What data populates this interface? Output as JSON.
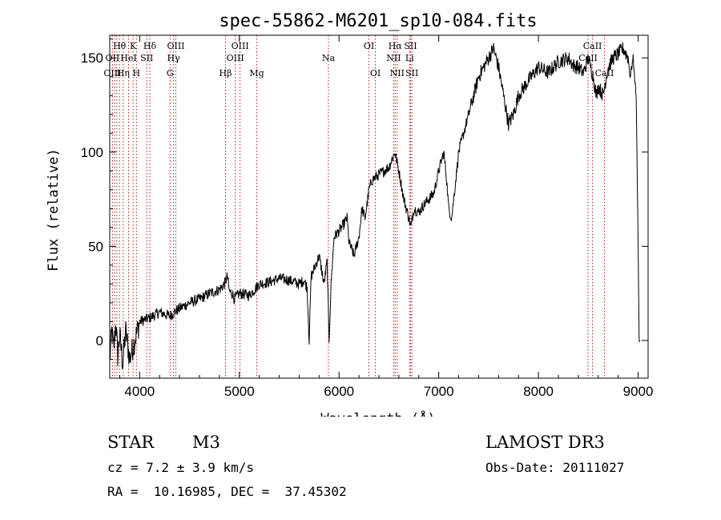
{
  "chart_data": {
    "type": "line",
    "title": "spec-55862-M6201_sp10-084.fits",
    "xlabel": "Wavelength (Å)",
    "ylabel": "Flux (relative)",
    "xlim": [
      3700,
      9100
    ],
    "ylim": [
      -20,
      162
    ],
    "xticks": [
      4000,
      5000,
      6000,
      7000,
      8000,
      9000
    ],
    "yticks": [
      0,
      50,
      100,
      150
    ],
    "spectrum_anchors": {
      "x": [
        3700,
        3720,
        3740,
        3760,
        3780,
        3800,
        3830,
        3860,
        3900,
        3950,
        4000,
        4100,
        4200,
        4300,
        4400,
        4500,
        4600,
        4700,
        4800,
        4850,
        4880,
        4900,
        4930,
        4950,
        5000,
        5100,
        5200,
        5300,
        5400,
        5500,
        5600,
        5650,
        5680,
        5700,
        5720,
        5750,
        5800,
        5850,
        5880,
        5900,
        5920,
        5950,
        6000,
        6050,
        6080,
        6100,
        6150,
        6200,
        6230,
        6260,
        6280,
        6300,
        6330,
        6350,
        6400,
        6450,
        6500,
        6530,
        6560,
        6580,
        6600,
        6650,
        6700,
        6720,
        6750,
        6800,
        6850,
        6900,
        6950,
        7000,
        7050,
        7080,
        7100,
        7130,
        7150,
        7170,
        7200,
        7300,
        7400,
        7500,
        7550,
        7600,
        7650,
        7700,
        7750,
        7800,
        7900,
        8000,
        8100,
        8200,
        8300,
        8350,
        8400,
        8450,
        8500,
        8550,
        8580,
        8600,
        8650,
        8680,
        8700,
        8750,
        8800,
        8850,
        8900,
        8920,
        8950,
        8980,
        9000,
        9010,
        9020
      ],
      "flux": [
        -10,
        5,
        -5,
        10,
        -8,
        3,
        -12,
        5,
        -10,
        0,
        10,
        12,
        15,
        13,
        17,
        20,
        22,
        25,
        27,
        30,
        34,
        26,
        25,
        22,
        25,
        24,
        30,
        31,
        33,
        32,
        30,
        32,
        28,
        0,
        34,
        38,
        45,
        30,
        42,
        0,
        30,
        55,
        58,
        62,
        65,
        52,
        45,
        55,
        70,
        65,
        72,
        80,
        85,
        86,
        88,
        90,
        92,
        96,
        100,
        95,
        90,
        75,
        65,
        60,
        70,
        68,
        72,
        75,
        78,
        90,
        100,
        85,
        70,
        65,
        75,
        85,
        100,
        120,
        140,
        150,
        155,
        145,
        130,
        115,
        120,
        130,
        138,
        145,
        142,
        148,
        150,
        146,
        145,
        142,
        150,
        140,
        130,
        135,
        130,
        140,
        145,
        150,
        152,
        155,
        150,
        140,
        150,
        130,
        50,
        0,
        0
      ]
    },
    "lines": [
      {
        "label": "Hθ",
        "wl": 3798,
        "row": 0
      },
      {
        "label": "K",
        "wl": 3934,
        "row": 0
      },
      {
        "label": "Hδ",
        "wl": 4102,
        "row": 0
      },
      {
        "label": "OIII",
        "wl": 4363,
        "row": 0
      },
      {
        "label": "OIII",
        "wl": 5007,
        "row": 0
      },
      {
        "label": "OI",
        "wl": 6300,
        "row": 0
      },
      {
        "label": "Hα",
        "wl": 6563,
        "row": 0
      },
      {
        "label": "SII",
        "wl": 6717,
        "row": 0
      },
      {
        "label": "CaII",
        "wl": 8542,
        "row": 0
      },
      {
        "label": "OII",
        "wl": 3727,
        "row": 1
      },
      {
        "label": "HeI",
        "wl": 3889,
        "row": 1
      },
      {
        "label": "SII",
        "wl": 4072,
        "row": 1
      },
      {
        "label": "Hγ",
        "wl": 4340,
        "row": 1
      },
      {
        "label": "OIII",
        "wl": 4959,
        "row": 1
      },
      {
        "label": "Na",
        "wl": 5893,
        "row": 1
      },
      {
        "label": "NII",
        "wl": 6548,
        "row": 1
      },
      {
        "label": "Li",
        "wl": 6708,
        "row": 1
      },
      {
        "label": "CaII",
        "wl": 8498,
        "row": 1
      },
      {
        "label": "OIII",
        "wl": 3727,
        "row": 2
      },
      {
        "label": "Hη",
        "wl": 3835,
        "row": 2
      },
      {
        "label": "H",
        "wl": 3968,
        "row": 2
      },
      {
        "label": "G",
        "wl": 4305,
        "row": 2
      },
      {
        "label": "Hβ",
        "wl": 4861,
        "row": 2
      },
      {
        "label": "Mg",
        "wl": 5175,
        "row": 2
      },
      {
        "label": "OI",
        "wl": 6364,
        "row": 2
      },
      {
        "label": "NII",
        "wl": 6583,
        "row": 2
      },
      {
        "label": "SII",
        "wl": 6731,
        "row": 2
      },
      {
        "label": "CaII",
        "wl": 8662,
        "row": 2
      }
    ],
    "line_wavelengths": [
      3727,
      3750,
      3771,
      3798,
      3835,
      3889,
      3934,
      3968,
      4072,
      4102,
      4305,
      4340,
      4363,
      4861,
      4959,
      5007,
      5175,
      5893,
      6300,
      6364,
      6548,
      6563,
      6583,
      6708,
      6717,
      6731,
      8498,
      8542,
      8662
    ],
    "colors": {
      "line_marker": "#b22222",
      "spectrum": "#000000",
      "axes": "#000000"
    }
  },
  "info": {
    "object_type": "STAR",
    "subclass": "M3",
    "survey": "LAMOST DR3",
    "cz": "cz = 7.2 ± 3.9 km/s",
    "obs_date": "Obs-Date: 20111027",
    "coords": "RA =  10.16985, DEC =  37.45302"
  }
}
